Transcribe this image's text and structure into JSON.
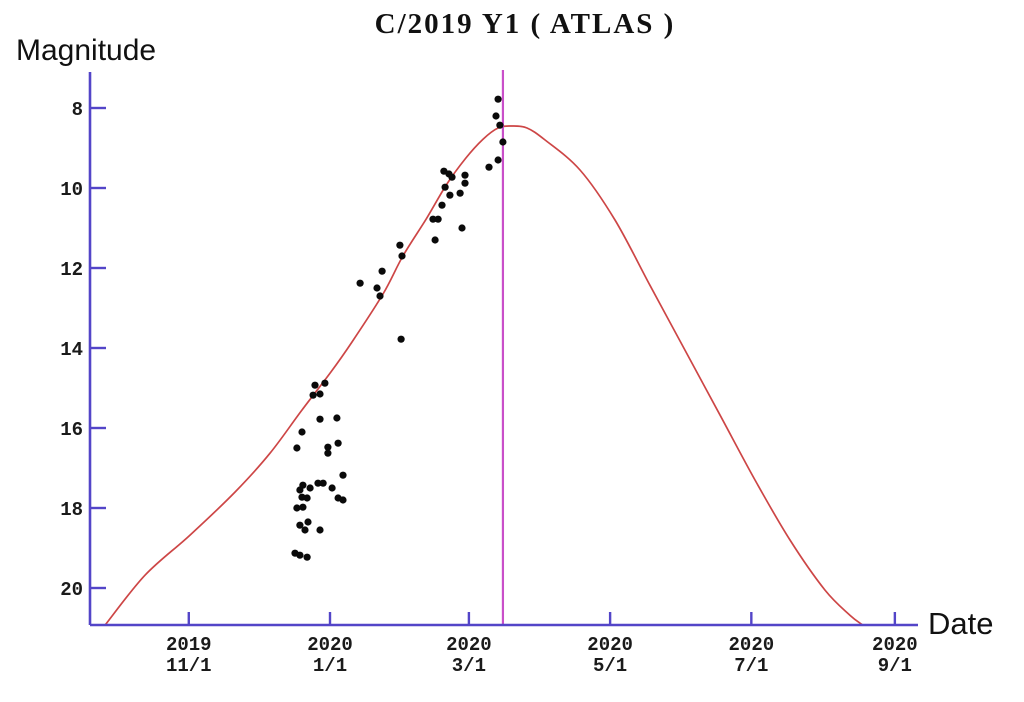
{
  "chart": {
    "title": "C/2019 Y1 ( ATLAS )",
    "ylabel": "Magnitude",
    "xlabel": "Date"
  },
  "colors": {
    "axis": "#5345c8",
    "model_curve": "#cd4646",
    "perihelion_line": "#c94fc9",
    "points": "#0a0a0a",
    "tick_text": "#1a1a1a"
  },
  "chart_data": {
    "type": "scatter",
    "title": "C/2019 Y1 ( ATLAS )",
    "xlabel": "Date",
    "ylabel": "Magnitude",
    "x_unit": "days relative to 2020-01-01",
    "y_increases_downward": true,
    "x_range_days": [
      -103.7,
      254.0
    ],
    "y_range_mag": [
      7.1,
      20.95
    ],
    "grid": false,
    "legend": false,
    "y_ticks": [
      8,
      10,
      12,
      14,
      16,
      18,
      20
    ],
    "x_ticks": [
      {
        "year": "2019",
        "day": "11/1",
        "d": -61
      },
      {
        "year": "2020",
        "day": "1/1",
        "d": 0
      },
      {
        "year": "2020",
        "day": "3/1",
        "d": 60
      },
      {
        "year": "2020",
        "day": "5/1",
        "d": 121
      },
      {
        "year": "2020",
        "day": "7/1",
        "d": 182
      },
      {
        "year": "2020",
        "day": "9/1",
        "d": 244
      }
    ],
    "perihelion_line_d": 74.7,
    "observations": [
      [
        -6.5,
        14.93
      ],
      [
        -2.2,
        14.88
      ],
      [
        -7.3,
        15.18
      ],
      [
        -4.3,
        15.15
      ],
      [
        -4.3,
        15.78
      ],
      [
        3.0,
        15.75
      ],
      [
        -12.1,
        16.1
      ],
      [
        -14.3,
        16.5
      ],
      [
        -0.9,
        16.48
      ],
      [
        -0.9,
        16.63
      ],
      [
        3.5,
        16.38
      ],
      [
        5.6,
        17.18
      ],
      [
        -11.7,
        17.43
      ],
      [
        -13.0,
        17.55
      ],
      [
        -8.6,
        17.5
      ],
      [
        -5.2,
        17.38
      ],
      [
        -3.0,
        17.38
      ],
      [
        0.9,
        17.5
      ],
      [
        3.5,
        17.75
      ],
      [
        5.6,
        17.8
      ],
      [
        -12.1,
        17.73
      ],
      [
        -9.9,
        17.75
      ],
      [
        -14.3,
        18.0
      ],
      [
        -11.7,
        17.98
      ],
      [
        -13.0,
        18.43
      ],
      [
        -9.5,
        18.35
      ],
      [
        -10.8,
        18.55
      ],
      [
        -4.3,
        18.55
      ],
      [
        -15.1,
        19.13
      ],
      [
        -13.0,
        19.18
      ],
      [
        -9.9,
        19.23
      ],
      [
        30.2,
        11.43
      ],
      [
        31.1,
        11.7
      ],
      [
        22.5,
        12.08
      ],
      [
        13.0,
        12.38
      ],
      [
        20.3,
        12.5
      ],
      [
        21.6,
        12.7
      ],
      [
        30.7,
        13.78
      ],
      [
        45.4,
        11.3
      ],
      [
        44.5,
        10.78
      ],
      [
        46.7,
        10.78
      ],
      [
        57.0,
        11.0
      ],
      [
        48.4,
        10.43
      ],
      [
        51.8,
        10.18
      ],
      [
        56.2,
        10.13
      ],
      [
        49.7,
        9.98
      ],
      [
        49.2,
        9.58
      ],
      [
        51.4,
        9.65
      ],
      [
        52.7,
        9.73
      ],
      [
        58.3,
        9.68
      ],
      [
        58.3,
        9.88
      ],
      [
        68.7,
        9.48
      ],
      [
        72.6,
        9.3
      ],
      [
        74.7,
        8.85
      ],
      [
        73.4,
        8.43
      ],
      [
        71.7,
        8.2
      ],
      [
        72.6,
        7.78
      ]
    ],
    "model_curve": [
      [
        -97.2,
        20.93
      ],
      [
        -79.9,
        19.68
      ],
      [
        -60.5,
        18.68
      ],
      [
        -41.0,
        17.6
      ],
      [
        -25.9,
        16.63
      ],
      [
        -12.1,
        15.55
      ],
      [
        0.4,
        14.6
      ],
      [
        9.5,
        13.85
      ],
      [
        22.9,
        12.65
      ],
      [
        31.5,
        11.7
      ],
      [
        41.5,
        10.78
      ],
      [
        50.5,
        9.9
      ],
      [
        58.7,
        9.25
      ],
      [
        66.1,
        8.78
      ],
      [
        72.6,
        8.5
      ],
      [
        78.6,
        8.45
      ],
      [
        85.1,
        8.5
      ],
      [
        92.9,
        8.8
      ],
      [
        108.0,
        9.55
      ],
      [
        123.1,
        10.8
      ],
      [
        138.2,
        12.43
      ],
      [
        153.3,
        14.05
      ],
      [
        168.5,
        15.68
      ],
      [
        183.6,
        17.3
      ],
      [
        198.7,
        18.8
      ],
      [
        213.8,
        20.05
      ],
      [
        224.6,
        20.68
      ],
      [
        230.2,
        20.93
      ]
    ]
  }
}
